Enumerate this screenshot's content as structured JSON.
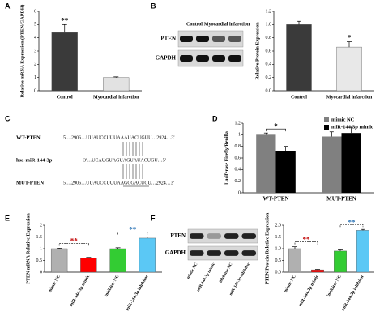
{
  "chart_data": [
    {
      "panel": "A",
      "type": "bar",
      "categories": [
        "Control",
        "Myocardial infarction"
      ],
      "values": [
        4.4,
        1.0
      ],
      "errors": [
        0.6,
        0.05
      ],
      "colors": [
        "#3a3a3a",
        "#e2e2e2"
      ],
      "ylabel": "Relative mRNA Expression (PTEN/GAPDH)",
      "ylim": [
        0,
        6
      ],
      "yticks": [
        0,
        1,
        2,
        3,
        4,
        5,
        6
      ],
      "annotations": [
        "**"
      ]
    },
    {
      "panel": "B",
      "type": "bar",
      "blot_lanes": [
        "Control",
        "Myocardial infarction"
      ],
      "blot_rows": [
        "PTEN",
        "GAPDH"
      ],
      "categories": [
        "Control",
        "Myocardial infarction"
      ],
      "values": [
        1.0,
        0.66
      ],
      "errors": [
        0.05,
        0.08
      ],
      "colors": [
        "#3a3a3a",
        "#e8e8e8"
      ],
      "ylabel": "Relative Protein Expression",
      "ylim": [
        0,
        1.2
      ],
      "yticks": [
        {
          "value": 0,
          "label": "0.0"
        },
        {
          "value": 0.2,
          "label": "0.2"
        },
        {
          "value": 0.4,
          "label": "0.4"
        },
        {
          "value": 0.6,
          "label": "0.6"
        },
        {
          "value": 0.8,
          "label": "0.8"
        },
        {
          "value": 1.0,
          "label": "1.0"
        },
        {
          "value": 1.2,
          "label": "1.2"
        }
      ],
      "annotations": [
        "*"
      ]
    },
    {
      "panel": "D",
      "type": "bar",
      "categories": [
        "WT-PTEN",
        "MUT-PTEN"
      ],
      "series": [
        {
          "name": "mimic NC",
          "color": "#808080",
          "values": [
            1.0,
            0.97
          ],
          "errors": [
            0.03,
            0.08
          ]
        },
        {
          "name": "miR-144-3p mimic",
          "color": "#000000",
          "values": [
            0.72,
            1.03
          ],
          "errors": [
            0.08,
            0.1
          ]
        }
      ],
      "ylabel": "Luciferase Firefly/Renilla",
      "ylim": [
        0,
        1.2
      ],
      "yticks": [
        0,
        0.2,
        0.4,
        0.6,
        0.8,
        1,
        1.2
      ],
      "legend": "top-right",
      "annotations": [
        "*"
      ]
    },
    {
      "panel": "E",
      "type": "bar",
      "categories": [
        "mimic NC",
        "miR-144-3p mimic",
        "inhibitor NC",
        "miR-144-3p inhibitor"
      ],
      "values": [
        1.0,
        0.6,
        1.0,
        1.45
      ],
      "errors": [
        0.02,
        0.03,
        0.04,
        0.05
      ],
      "colors": [
        "#b0b0b0",
        "#ff0000",
        "#33cc33",
        "#5bc8f5"
      ],
      "ylabel": "PTEN mRNA Relative Expression",
      "ylim": [
        0,
        2
      ],
      "yticks": [
        0,
        0.5,
        1,
        1.5,
        2
      ],
      "annotations": [
        "**",
        "**"
      ]
    },
    {
      "panel": "F",
      "type": "bar",
      "blot_lanes": [
        "mimic NC",
        "miR-144-3p mimic",
        "inhibitor NC",
        "miR-144-3p inhibitor"
      ],
      "blot_rows": [
        "PTEN",
        "GAPDH"
      ],
      "categories": [
        "mimic NC",
        "miR-144-3p mimic",
        "inhibitor NC",
        "miR-144-3p inhibitor"
      ],
      "values": [
        1.0,
        0.1,
        0.9,
        1.78
      ],
      "errors": [
        0.08,
        0.02,
        0.05,
        0.04
      ],
      "colors": [
        "#b0b0b0",
        "#ff0000",
        "#33cc33",
        "#5bc8f5"
      ],
      "ylabel": "PTEN Protein Relative Expression",
      "ylim": [
        0,
        2
      ],
      "yticks": [
        {
          "value": 0,
          "label": "0.0"
        },
        {
          "value": 0.5,
          "label": "0.5"
        },
        {
          "value": 1,
          "label": "1.0"
        },
        {
          "value": 1.5,
          "label": "1.5"
        },
        {
          "value": 2,
          "label": "2.0"
        }
      ],
      "annotations": [
        "**",
        "**"
      ]
    }
  ],
  "sequences": {
    "panel": "C",
    "rows": [
      {
        "name": "WT-PTEN",
        "seq": "5'…2906…UUAUCCUUUAAAUACUGUU…2924…3'"
      },
      {
        "name": "hsa-miR-144-3p",
        "seq": "3'…UCAUGUAGUAGUAUACUGU…5'"
      },
      {
        "name": "MUT-PTEN",
        "seq": "5'…2906…UUAUCCUUUAAGCGACUCU…2924…3'"
      }
    ]
  }
}
